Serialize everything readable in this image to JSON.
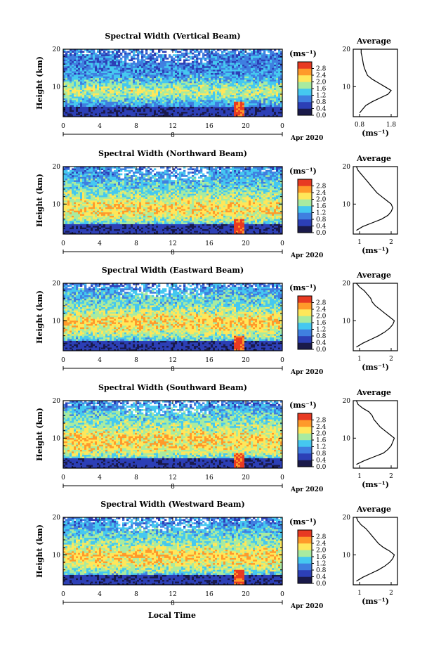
{
  "figure": {
    "xlabel": "Local Time",
    "date_label": "Apr 2020",
    "day_label": "8",
    "unit_label": "(ms⁻¹)",
    "average_title": "Average",
    "average_xunit": "(ms⁻¹)",
    "colorbar_ticks": [
      "0.0",
      "0.4",
      "0.8",
      "1.2",
      "1.6",
      "2.0",
      "2.4",
      "2.8"
    ],
    "colors": [
      "#1a1a4a",
      "#2c3fb6",
      "#3f7fe0",
      "#45c8f0",
      "#a8eba0",
      "#ffe75a",
      "#ff9a2a",
      "#e83a22"
    ]
  },
  "chart_data": [
    {
      "type": "heatmap",
      "title": "Spectral Width (Vertical Beam)",
      "ylabel": "Height (km)",
      "xlim": [
        0,
        24
      ],
      "ylim": [
        2,
        20
      ],
      "xticks": [
        "0",
        "4",
        "8",
        "12",
        "16",
        "20",
        "0"
      ],
      "yticks": [
        "10",
        "20"
      ],
      "clim": [
        0,
        3.0
      ],
      "profile_xticks": [
        "0.8",
        "1.8"
      ],
      "average_profile": {
        "height_km": [
          3,
          4,
          5,
          6,
          7,
          8,
          9,
          10,
          11,
          12,
          13,
          14,
          15,
          16,
          17,
          18,
          19,
          20
        ],
        "width_ms": [
          0.8,
          0.9,
          1.0,
          1.2,
          1.45,
          1.7,
          1.8,
          1.6,
          1.4,
          1.2,
          1.05,
          1.0,
          0.95,
          0.92,
          0.9,
          0.88,
          0.85,
          0.85
        ]
      }
    },
    {
      "type": "heatmap",
      "title": "Spectral Width (Northward Beam)",
      "ylabel": "Height (km)",
      "xlim": [
        0,
        24
      ],
      "ylim": [
        2,
        20
      ],
      "xticks": [
        "0",
        "4",
        "8",
        "12",
        "16",
        "20",
        "0"
      ],
      "yticks": [
        "10",
        "20"
      ],
      "clim": [
        0,
        3.0
      ],
      "profile_xticks": [
        "1",
        "2"
      ],
      "average_profile": {
        "height_km": [
          3,
          4,
          5,
          6,
          7,
          8,
          9,
          10,
          11,
          12,
          13,
          14,
          15,
          16,
          17,
          18,
          19,
          20
        ],
        "width_ms": [
          0.9,
          1.1,
          1.4,
          1.7,
          1.9,
          2.0,
          2.05,
          2.0,
          1.85,
          1.7,
          1.55,
          1.45,
          1.35,
          1.25,
          1.15,
          1.05,
          0.95,
          0.9
        ]
      }
    },
    {
      "type": "heatmap",
      "title": "Spectral Width (Eastward Beam)",
      "ylabel": "Height (km)",
      "xlim": [
        0,
        24
      ],
      "ylim": [
        2,
        20
      ],
      "xticks": [
        "0",
        "4",
        "8",
        "12",
        "16",
        "20",
        "0"
      ],
      "yticks": [
        "10",
        "20"
      ],
      "clim": [
        0,
        3.0
      ],
      "profile_xticks": [
        "1",
        "2"
      ],
      "average_profile": {
        "height_km": [
          3,
          4,
          5,
          6,
          7,
          8,
          9,
          10,
          11,
          12,
          13,
          14,
          15,
          16,
          17,
          18,
          19,
          20
        ],
        "width_ms": [
          0.9,
          1.1,
          1.35,
          1.6,
          1.8,
          1.95,
          2.05,
          2.1,
          1.95,
          1.8,
          1.65,
          1.5,
          1.4,
          1.35,
          1.25,
          1.15,
          1.0,
          0.9
        ]
      }
    },
    {
      "type": "heatmap",
      "title": "Spectral Width (Southward Beam)",
      "ylabel": "Height (km)",
      "xlim": [
        0,
        24
      ],
      "ylim": [
        2,
        20
      ],
      "xticks": [
        "0",
        "4",
        "8",
        "12",
        "16",
        "20",
        "0"
      ],
      "yticks": [
        "10",
        "20"
      ],
      "clim": [
        0,
        3.0
      ],
      "profile_xticks": [
        "1",
        "2"
      ],
      "average_profile": {
        "height_km": [
          3,
          4,
          5,
          6,
          7,
          8,
          9,
          10,
          11,
          12,
          13,
          14,
          15,
          16,
          17,
          18,
          19,
          20
        ],
        "width_ms": [
          0.9,
          1.15,
          1.45,
          1.75,
          1.9,
          2.0,
          2.05,
          2.1,
          1.95,
          1.8,
          1.65,
          1.55,
          1.45,
          1.4,
          1.3,
          1.1,
          0.95,
          0.9
        ]
      }
    },
    {
      "type": "heatmap",
      "title": "Spectral Width (Westward Beam)",
      "ylabel": "Height (km)",
      "xlim": [
        0,
        24
      ],
      "ylim": [
        2,
        20
      ],
      "xticks": [
        "0",
        "4",
        "8",
        "12",
        "16",
        "20",
        "0"
      ],
      "yticks": [
        "10",
        "20"
      ],
      "clim": [
        0,
        3.0
      ],
      "profile_xticks": [
        "1",
        "2"
      ],
      "average_profile": {
        "height_km": [
          3,
          4,
          5,
          6,
          7,
          8,
          9,
          10,
          11,
          12,
          13,
          14,
          15,
          16,
          17,
          18,
          19,
          20
        ],
        "width_ms": [
          0.9,
          1.1,
          1.35,
          1.6,
          1.8,
          1.95,
          2.05,
          2.1,
          1.95,
          1.75,
          1.6,
          1.5,
          1.4,
          1.3,
          1.2,
          1.05,
          0.95,
          0.9
        ]
      }
    }
  ]
}
